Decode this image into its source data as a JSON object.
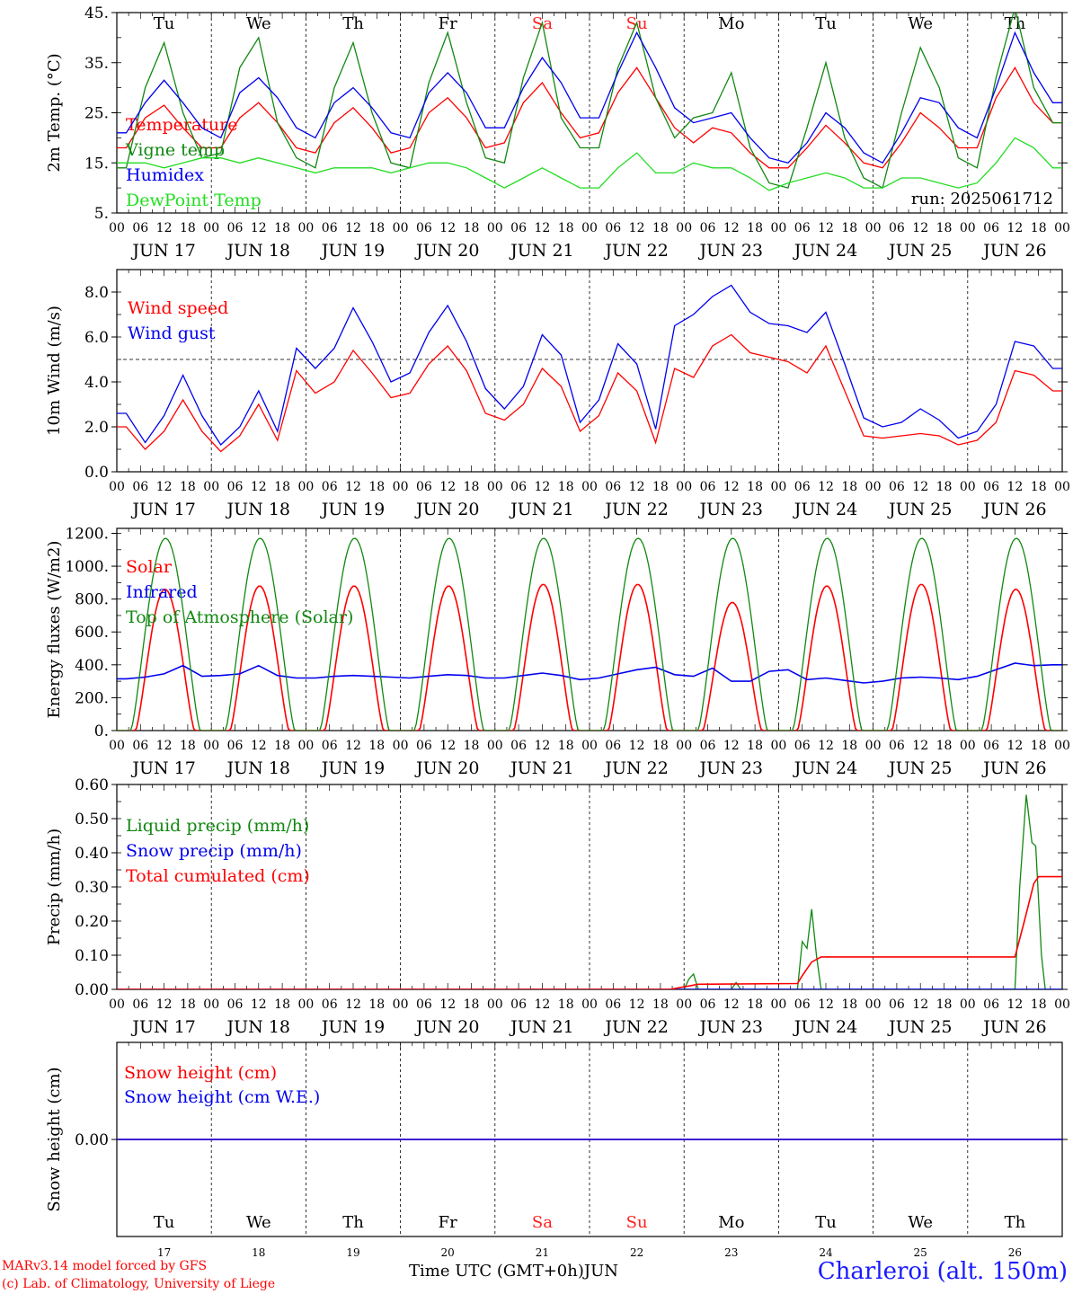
{
  "station": "Charleroi (alt. 150m)",
  "credits": [
    "MARv3.14 model forced by GFS",
    "(c) Lab. of Climatology, University of Liege"
  ],
  "xlabel": "Time UTC (GMT+0h)",
  "month_label": "JUN",
  "colors": {
    "red": "#ff0000",
    "green": "#118811",
    "blue": "#0000ee",
    "lime": "#22dd22",
    "weekend": "#ff2020"
  },
  "days": [
    {
      "abbr": "Tu",
      "date": "JUN 17",
      "num": "17",
      "weekend": false
    },
    {
      "abbr": "We",
      "date": "JUN 18",
      "num": "18",
      "weekend": false
    },
    {
      "abbr": "Th",
      "date": "JUN 19",
      "num": "19",
      "weekend": false
    },
    {
      "abbr": "Fr",
      "date": "JUN 20",
      "num": "20",
      "weekend": false
    },
    {
      "abbr": "Sa",
      "date": "JUN 21",
      "num": "21",
      "weekend": true
    },
    {
      "abbr": "Su",
      "date": "JUN 22",
      "num": "22",
      "weekend": true
    },
    {
      "abbr": "Mo",
      "date": "JUN 23",
      "num": "23",
      "weekend": false
    },
    {
      "abbr": "Tu",
      "date": "JUN 24",
      "num": "24",
      "weekend": false
    },
    {
      "abbr": "We",
      "date": "JUN 25",
      "num": "25",
      "weekend": false
    },
    {
      "abbr": "Th",
      "date": "JUN 26",
      "num": "26",
      "weekend": false
    }
  ],
  "hour_labels": [
    "00",
    "06",
    "12",
    "18"
  ],
  "final_hour_label": "00",
  "chart_data": [
    {
      "type": "line",
      "ylabel": "2m Temp. (°C)",
      "ylim": [
        5,
        45
      ],
      "yticks": [
        5,
        15,
        25,
        35,
        45
      ],
      "ytick_labels": [
        "5.",
        "15.",
        "25.",
        "35.",
        "45."
      ],
      "annotation": "run: 2025061712",
      "show_day_names": true,
      "series": [
        {
          "name": "Temperature",
          "color": "red",
          "values": [
            18,
            24,
            26.5,
            22,
            18,
            18,
            24,
            27,
            23,
            18,
            17,
            23,
            26,
            22,
            17,
            18,
            25,
            28,
            24,
            18,
            19,
            27,
            31,
            25,
            20,
            21,
            29,
            34,
            28,
            22,
            19,
            22,
            21,
            17,
            14,
            14,
            18,
            22.5,
            19,
            15,
            14,
            19,
            25,
            22,
            18,
            18,
            28,
            34,
            27,
            23
          ]
        },
        {
          "name": "Vigne temp",
          "color": "green",
          "values": [
            14,
            30,
            39,
            25,
            16,
            17,
            34,
            40,
            23,
            16,
            14,
            30,
            39,
            25,
            15,
            14,
            31,
            41,
            27,
            16,
            15,
            32,
            43,
            24,
            18,
            18,
            34,
            43,
            28,
            20,
            24,
            25,
            33,
            18,
            11,
            10,
            22,
            35,
            20,
            12,
            10,
            25,
            38,
            30,
            16,
            14,
            32,
            46,
            30,
            23
          ]
        },
        {
          "name": "Humidex",
          "color": "blue",
          "values": [
            21,
            27,
            31.5,
            27,
            22,
            20,
            29,
            32,
            28,
            22,
            20,
            27,
            30,
            26,
            21,
            20,
            29,
            33,
            29,
            22,
            22,
            30,
            36,
            31,
            24,
            24,
            33,
            41,
            34,
            26,
            23,
            24,
            25,
            20,
            16,
            15,
            19,
            25,
            22,
            17,
            15,
            21,
            28,
            27,
            22,
            20,
            30,
            41,
            33,
            27
          ]
        },
        {
          "name": "DewPoint Temp",
          "color": "lime",
          "values": [
            15,
            15,
            14,
            15,
            16,
            16,
            15,
            16,
            15,
            14,
            13,
            14,
            14,
            14,
            13,
            14,
            15,
            15,
            14,
            12,
            10,
            12,
            14,
            12,
            10,
            10,
            14,
            17,
            13,
            13,
            15,
            14,
            14,
            12,
            9.5,
            11,
            12,
            13,
            12,
            10,
            10,
            12,
            12,
            11,
            10,
            11,
            15,
            20,
            18,
            14
          ]
        }
      ]
    },
    {
      "type": "line",
      "ylabel": "10m Wind (m/s)",
      "ylim": [
        0,
        9
      ],
      "yticks": [
        0,
        2,
        4,
        6,
        8
      ],
      "ytick_labels": [
        "0.0",
        "2.0",
        "4.0",
        "6.0",
        "8.0"
      ],
      "reference_line": 5,
      "show_day_names": false,
      "series": [
        {
          "name": "Wind speed",
          "color": "red",
          "values": [
            2,
            1.0,
            1.8,
            3.2,
            1.8,
            0.9,
            1.6,
            3.0,
            1.4,
            4.5,
            3.5,
            4.0,
            5.4,
            4.4,
            3.3,
            3.5,
            4.8,
            5.6,
            4.5,
            2.6,
            2.3,
            3.0,
            4.6,
            3.8,
            1.8,
            2.5,
            4.4,
            3.6,
            1.3,
            4.6,
            4.2,
            5.6,
            6.1,
            5.3,
            5.1,
            4.9,
            4.4,
            5.6,
            3.6,
            1.6,
            1.5,
            1.6,
            1.7,
            1.6,
            1.2,
            1.4,
            2.2,
            4.5,
            4.3,
            3.6
          ]
        },
        {
          "name": "Wind gust",
          "color": "blue",
          "values": [
            2.6,
            1.3,
            2.5,
            4.3,
            2.5,
            1.2,
            2.0,
            3.6,
            1.8,
            5.5,
            4.6,
            5.5,
            7.3,
            5.8,
            4.0,
            4.4,
            6.2,
            7.4,
            5.8,
            3.7,
            2.8,
            3.8,
            6.1,
            5.2,
            2.2,
            3.2,
            5.7,
            4.8,
            1.9,
            6.5,
            7.0,
            7.8,
            8.3,
            7.1,
            6.6,
            6.5,
            6.2,
            7.1,
            4.8,
            2.4,
            2.0,
            2.2,
            2.8,
            2.3,
            1.5,
            1.8,
            3.0,
            5.8,
            5.6,
            4.6
          ]
        }
      ]
    },
    {
      "type": "line",
      "ylabel": "Energy fluxes (W/m2)",
      "ylim": [
        0,
        1230
      ],
      "yticks": [
        0,
        200,
        400,
        600,
        800,
        1000,
        1200
      ],
      "ytick_labels": [
        "0.",
        "200.",
        "400.",
        "600.",
        "800.",
        "1000.",
        "1200."
      ],
      "show_day_names": false,
      "series": [
        {
          "name": "Solar",
          "color": "red",
          "peaks": [
            860,
            880,
            880,
            880,
            890,
            890,
            780,
            880,
            890,
            860
          ]
        },
        {
          "name": "Infrared",
          "color": "blue",
          "values": [
            315,
            325,
            345,
            395,
            330,
            335,
            345,
            395,
            335,
            320,
            320,
            330,
            335,
            330,
            325,
            320,
            330,
            340,
            335,
            320,
            320,
            335,
            350,
            335,
            310,
            320,
            345,
            370,
            385,
            340,
            330,
            380,
            300,
            300,
            360,
            370,
            310,
            320,
            305,
            290,
            300,
            320,
            325,
            320,
            310,
            330,
            370,
            410,
            395,
            400
          ]
        },
        {
          "name": "Top of Atmosphere (Solar)",
          "color": "green",
          "peak": 1170
        }
      ]
    },
    {
      "type": "line",
      "ylabel": "Precip (mm/h)",
      "ylim": [
        0,
        0.6
      ],
      "yticks": [
        0,
        0.1,
        0.2,
        0.3,
        0.4,
        0.5,
        0.6
      ],
      "ytick_labels": [
        "0.00",
        "0.10",
        "0.20",
        "0.30",
        "0.40",
        "0.50",
        "0.60"
      ],
      "show_day_names": false,
      "series": [
        {
          "name": "Liquid precip (mm/h)",
          "color": "green",
          "points": [
            [
              6.0,
              0
            ],
            [
              6.05,
              0.03
            ],
            [
              6.1,
              0.045
            ],
            [
              6.15,
              0
            ],
            [
              6.5,
              0
            ],
            [
              6.55,
              0.02
            ],
            [
              6.6,
              0
            ],
            [
              7.2,
              0
            ],
            [
              7.25,
              0.14
            ],
            [
              7.3,
              0.12
            ],
            [
              7.35,
              0.235
            ],
            [
              7.4,
              0.1
            ],
            [
              7.45,
              0
            ],
            [
              9.5,
              0
            ],
            [
              9.55,
              0.3
            ],
            [
              9.62,
              0.57
            ],
            [
              9.68,
              0.43
            ],
            [
              9.72,
              0.42
            ],
            [
              9.78,
              0.1
            ],
            [
              9.82,
              0
            ]
          ]
        },
        {
          "name": "Snow precip (mm/h)",
          "color": "blue",
          "points": [
            [
              0,
              0
            ],
            [
              10,
              0
            ]
          ]
        },
        {
          "name": "Total cumulated (cm)",
          "color": "red",
          "points": [
            [
              0,
              0
            ],
            [
              5.85,
              0
            ],
            [
              6.15,
              0.015
            ],
            [
              7.2,
              0.017
            ],
            [
              7.25,
              0.04
            ],
            [
              7.35,
              0.08
            ],
            [
              7.45,
              0.095
            ],
            [
              9.5,
              0.095
            ],
            [
              9.6,
              0.2
            ],
            [
              9.7,
              0.31
            ],
            [
              9.75,
              0.33
            ],
            [
              10,
              0.33
            ]
          ]
        }
      ]
    },
    {
      "type": "line",
      "ylabel": "Snow height (cm)",
      "ylim": [
        -1,
        1
      ],
      "yticks": [
        0
      ],
      "ytick_labels": [
        "0.00"
      ],
      "show_day_names_bottom": true,
      "series": [
        {
          "name": "Snow height (cm)",
          "color": "red",
          "points": [
            [
              0,
              0
            ],
            [
              10,
              0
            ]
          ]
        },
        {
          "name": "Snow height (cm W.E.)",
          "color": "blue",
          "points": [
            [
              0,
              0
            ],
            [
              10,
              0
            ]
          ]
        }
      ]
    }
  ]
}
